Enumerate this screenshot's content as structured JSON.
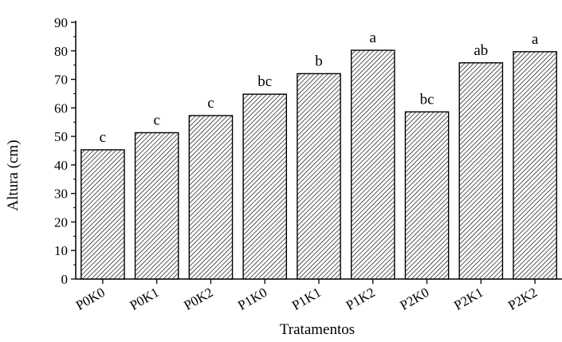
{
  "chart_data": {
    "type": "bar",
    "categories": [
      "P0K0",
      "P0K1",
      "P0K2",
      "P1K0",
      "P1K1",
      "P1K2",
      "P2K0",
      "P2K1",
      "P2K2"
    ],
    "values": [
      45.3,
      51.3,
      57.3,
      64.8,
      72.0,
      80.2,
      58.6,
      75.8,
      79.7
    ],
    "letters": [
      "c",
      "c",
      "c",
      "bc",
      "b",
      "a",
      "bc",
      "ab",
      "a"
    ],
    "xlabel": "Tratamentos",
    "ylabel": "Altura (cm)",
    "ylim": [
      0,
      90
    ],
    "yticks": [
      "0",
      "10",
      "20",
      "30",
      "40",
      "50",
      "60",
      "70",
      "80",
      "90"
    ],
    "fill_pattern": "diagonal-hatch",
    "bar_color": "#000000",
    "grid": false
  }
}
